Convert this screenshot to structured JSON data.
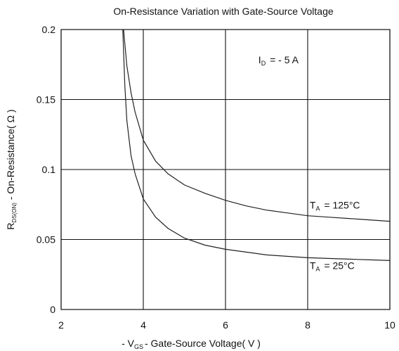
{
  "chart_data": {
    "type": "line",
    "title": "On-Resistance Variation with Gate-Source Voltage",
    "xlabel": {
      "prefix": "- V",
      "sub": "GS",
      "suffix": "- Gate-Source Voltage( V )"
    },
    "ylabel": {
      "prefix": "R",
      "sub": "DS(ON)",
      "suffix": " - On-Resistance( Ω )"
    },
    "xlim": [
      2,
      10
    ],
    "ylim": [
      0,
      0.2
    ],
    "xticks": [
      "2",
      "4",
      "6",
      "8",
      "10"
    ],
    "yticks": [
      "0",
      "0.05",
      "0.1",
      "0.15",
      "0.2"
    ],
    "grid": true,
    "annotations": [
      {
        "label_prefix": "I",
        "label_sub": "D",
        "label_suffix": " = - 5 A",
        "x": 6.8,
        "y": 0.176
      }
    ],
    "series": [
      {
        "name": "TA = 125°C",
        "label_prefix": "T",
        "label_sub": "A",
        "label_suffix": " = 125°C",
        "label_x": 8.05,
        "label_y": 0.072,
        "x": [
          3.52,
          3.6,
          3.7,
          3.8,
          4.0,
          4.3,
          4.6,
          5.0,
          5.5,
          6.0,
          6.5,
          7.0,
          7.5,
          8.0,
          8.5,
          9.0,
          9.5,
          10.0
        ],
        "y": [
          0.2,
          0.174,
          0.155,
          0.141,
          0.121,
          0.106,
          0.097,
          0.089,
          0.083,
          0.078,
          0.074,
          0.071,
          0.069,
          0.067,
          0.066,
          0.065,
          0.064,
          0.063
        ]
      },
      {
        "name": "TA = 25°C",
        "label_prefix": "T",
        "label_sub": "A",
        "label_suffix": " = 25°C",
        "label_x": 8.05,
        "label_y": 0.029,
        "x": [
          3.5,
          3.55,
          3.6,
          3.7,
          3.8,
          4.0,
          4.3,
          4.6,
          5.0,
          5.5,
          6.0,
          6.5,
          7.0,
          7.5,
          8.0,
          8.5,
          9.0,
          9.5,
          10.0
        ],
        "y": [
          0.2,
          0.16,
          0.135,
          0.11,
          0.097,
          0.079,
          0.066,
          0.058,
          0.051,
          0.046,
          0.043,
          0.041,
          0.039,
          0.038,
          0.037,
          0.0365,
          0.036,
          0.0355,
          0.035
        ]
      }
    ]
  }
}
